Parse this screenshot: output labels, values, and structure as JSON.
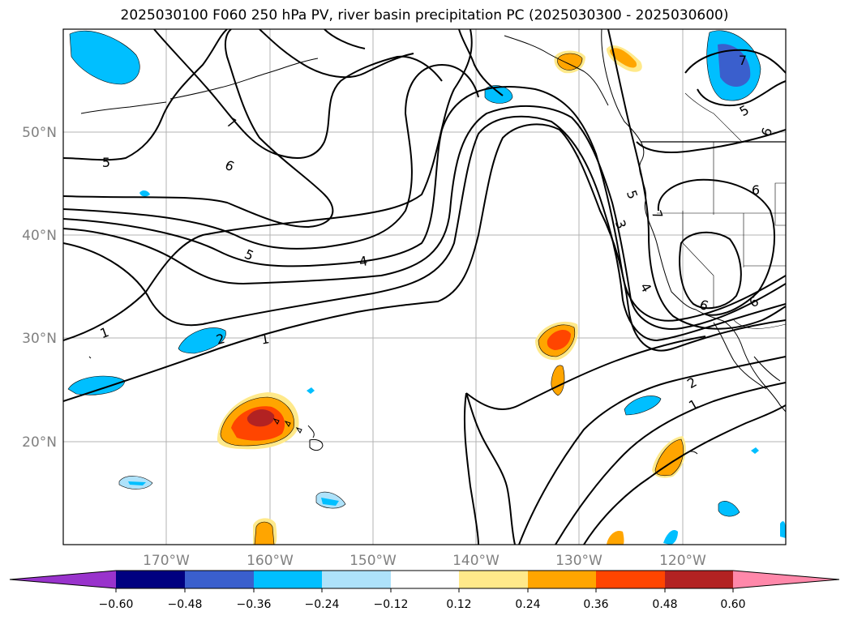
{
  "title": "2025030100 F060 250 hPa PV, river basin precipitation PC (2025030300 - 2025030600)",
  "map": {
    "lat_labels": [
      "50°N",
      "40°N",
      "30°N",
      "20°N"
    ],
    "lon_labels": [
      "170°W",
      "160°W",
      "150°W",
      "140°W",
      "130°W",
      "120°W"
    ],
    "contour_labels": [
      "7",
      "6",
      "5",
      "5",
      "4",
      "3",
      "2",
      "1",
      "1",
      "2",
      "1",
      "5",
      "4",
      "6",
      "7",
      "5",
      "6",
      "7",
      "6",
      "6"
    ],
    "gridlines": true
  },
  "colorbar": {
    "ticks": [
      "−0.60",
      "−0.48",
      "−0.36",
      "−0.24",
      "−0.12",
      "0.12",
      "0.24",
      "0.36",
      "0.48",
      "0.60"
    ],
    "colors": [
      "#9933cc",
      "#000080",
      "#3a5fcd",
      "#00bfff",
      "#aee2fa",
      "#ffffff",
      "#ffe98a",
      "#ffa500",
      "#ff4500",
      "#b22222",
      "#ff88aa"
    ],
    "extend": "both"
  }
}
